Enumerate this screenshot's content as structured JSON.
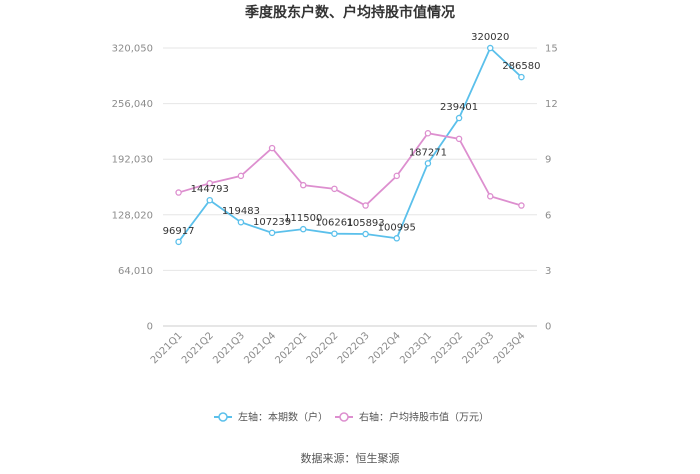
{
  "chart_data": {
    "type": "line",
    "title": "季度股东户数、户均持股市值情况",
    "categories": [
      "2021Q1",
      "2021Q2",
      "2021Q3",
      "2021Q4",
      "2022Q1",
      "2022Q2",
      "2022Q3",
      "2022Q4",
      "2023Q1",
      "2023Q2",
      "2023Q3",
      "2023Q4"
    ],
    "left_axis": {
      "min": 0,
      "max": 320050,
      "ticks": [
        0,
        64010,
        128020,
        192030,
        256040,
        320050
      ],
      "tick_labels": [
        "0",
        "64,010",
        "128,020",
        "192,030",
        "256,040",
        "320,050"
      ]
    },
    "right_axis": {
      "min": 0,
      "max": 15,
      "ticks": [
        0,
        3,
        6,
        9,
        12,
        15
      ],
      "tick_labels": [
        "0",
        "3",
        "6",
        "9",
        "12",
        "15"
      ]
    },
    "series": [
      {
        "name": "左轴：本期数（户）",
        "axis": "left",
        "color": "#5bc0eb",
        "values": [
          96917,
          144793,
          119483,
          107239,
          111500,
          106261,
          105893,
          100995,
          187271,
          239401,
          320020,
          286580
        ],
        "labels": [
          "96917",
          "144793",
          "119483",
          "107239",
          "111500",
          "106261",
          "105893",
          "100995",
          "187271",
          "239401",
          "320020",
          "286580"
        ]
      },
      {
        "name": "右轴：户均持股市值（万元）",
        "axis": "right",
        "color": "#dd8fcf",
        "values": [
          7.2,
          7.7,
          8.1,
          9.6,
          7.6,
          7.4,
          6.5,
          8.1,
          10.4,
          10.1,
          7.0,
          6.5
        ]
      }
    ],
    "grid": true,
    "legend_position": "bottom"
  },
  "footer": {
    "source": "数据来源：恒生聚源"
  }
}
